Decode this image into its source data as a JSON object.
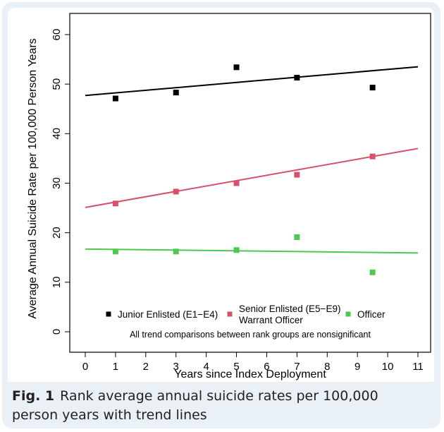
{
  "caption": {
    "label": "Fig. 1",
    "text": "Rank average annual suicide rates per 100,000 person years with trend lines"
  },
  "chart_data": {
    "type": "scatter",
    "xlabel": "Years since Index Deployment",
    "ylabel": "Average Annual Suicide Rate per 100,000 Person Years",
    "xlim": [
      0,
      11
    ],
    "ylim": [
      0,
      60
    ],
    "xticks": [
      0,
      1,
      2,
      3,
      4,
      5,
      6,
      7,
      8,
      9,
      10,
      11
    ],
    "yticks": [
      0,
      10,
      20,
      30,
      40,
      50,
      60
    ],
    "grid": false,
    "legend_position": "bottom",
    "annotation": "All trend comparisons between rank groups are nonsignificant",
    "series": [
      {
        "name": "Junior Enlisted (E1−E4)",
        "color": "#000000",
        "x": [
          1,
          3,
          5,
          7,
          9.5
        ],
        "y": [
          47.1,
          48.3,
          53.4,
          51.3,
          49.3
        ],
        "trend": {
          "x": [
            0,
            11
          ],
          "y": [
            47.7,
            53.5
          ]
        }
      },
      {
        "name": "Senior Enlisted (E5−E9)\nWarrant Officer",
        "color": "#d9506a",
        "x": [
          1,
          3,
          5,
          7,
          9.5
        ],
        "y": [
          25.9,
          28.3,
          30.0,
          31.7,
          35.4
        ],
        "trend": {
          "x": [
            0,
            11
          ],
          "y": [
            25.1,
            37.0
          ]
        }
      },
      {
        "name": "Officer",
        "color": "#4ec94e",
        "x": [
          1,
          3,
          5,
          7,
          9.5
        ],
        "y": [
          16.2,
          16.2,
          16.5,
          19.1,
          12.0
        ],
        "trend": {
          "x": [
            0,
            11
          ],
          "y": [
            16.7,
            15.9
          ]
        }
      }
    ]
  }
}
